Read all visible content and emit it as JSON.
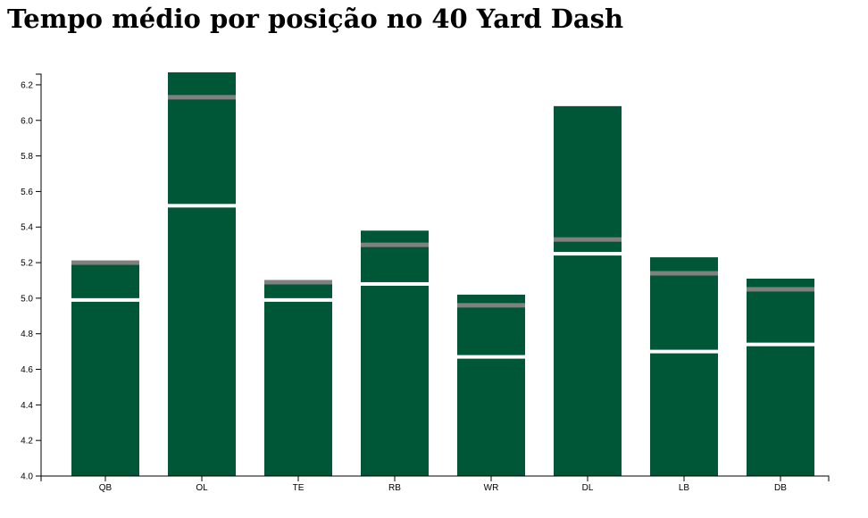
{
  "colors": {
    "bar": "#005737",
    "marker_white": "#ffffff",
    "marker_gray": "#808080"
  },
  "chart_data": {
    "type": "bar",
    "title": "Tempo médio por posição no 40 Yard Dash",
    "xlabel": "",
    "ylabel": "",
    "ylim": [
      4.0,
      6.26
    ],
    "yticks": [
      4.0,
      4.2,
      4.4,
      4.6,
      4.8,
      5.0,
      5.2,
      5.4,
      5.6,
      5.8,
      6.0,
      6.2
    ],
    "categories": [
      "QB",
      "OL",
      "TE",
      "RB",
      "WR",
      "DL",
      "LB",
      "DB"
    ],
    "values": [
      5.21,
      6.27,
      5.1,
      5.38,
      5.02,
      6.08,
      5.23,
      5.11
    ],
    "white_marker": [
      4.99,
      5.52,
      4.99,
      5.08,
      4.67,
      5.25,
      4.7,
      4.74
    ],
    "gray_marker": [
      5.2,
      6.13,
      5.09,
      5.3,
      4.96,
      5.33,
      5.14,
      5.05
    ],
    "grid": false
  }
}
